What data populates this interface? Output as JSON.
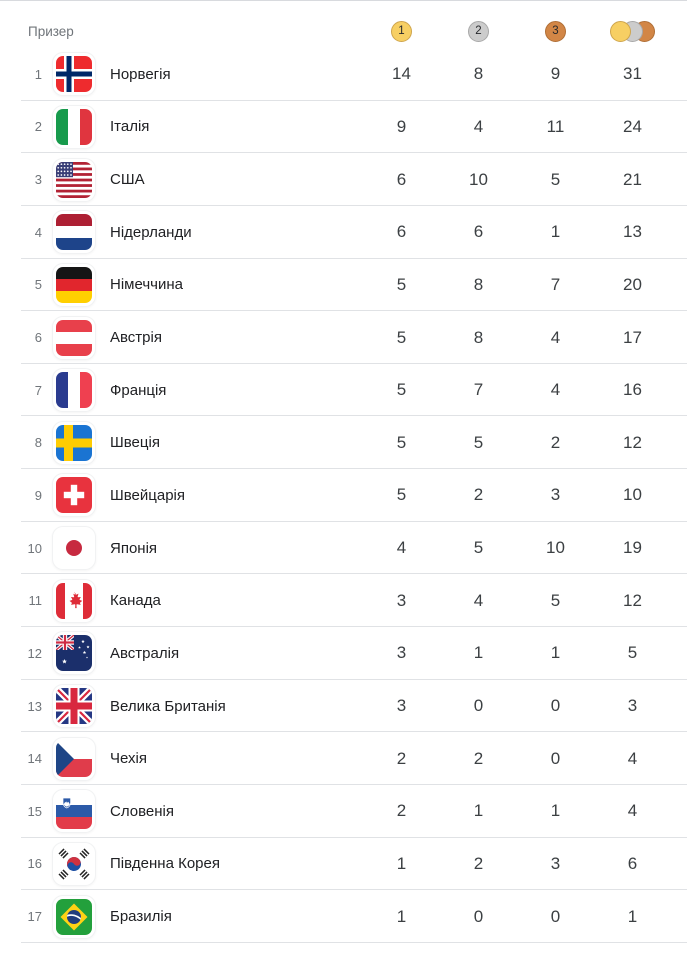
{
  "header": {
    "label": "Призер",
    "medals": {
      "gold": {
        "label": "1",
        "fill": "#f7cf63",
        "border": "#cfa54d"
      },
      "silver": {
        "label": "2",
        "fill": "#cccccc",
        "border": "#a8a8a8"
      },
      "bronze": {
        "label": "3",
        "fill": "#d28646",
        "border": "#b06f36"
      }
    },
    "total_icon": "gold-silver-bronze-overlapping-circles"
  },
  "colors": {
    "top_border": "#d8dade",
    "row_divider": "#e0e2e5",
    "rank_text": "#70757a",
    "country_text": "#202124",
    "count_text": "#3c4043",
    "header_text": "#70757a"
  },
  "table": {
    "columns": [
      "rank",
      "country",
      "gold",
      "silver",
      "bronze",
      "total"
    ],
    "rows": [
      {
        "rank": "1",
        "country": "Норвегія",
        "flag": "norway",
        "gold": "14",
        "silver": "8",
        "bronze": "9",
        "total": "31"
      },
      {
        "rank": "2",
        "country": "Італія",
        "flag": "italy",
        "gold": "9",
        "silver": "4",
        "bronze": "11",
        "total": "24"
      },
      {
        "rank": "3",
        "country": "США",
        "flag": "usa",
        "gold": "6",
        "silver": "10",
        "bronze": "5",
        "total": "21"
      },
      {
        "rank": "4",
        "country": "Нідерланди",
        "flag": "netherlands",
        "gold": "6",
        "silver": "6",
        "bronze": "1",
        "total": "13"
      },
      {
        "rank": "5",
        "country": "Німеччина",
        "flag": "germany",
        "gold": "5",
        "silver": "8",
        "bronze": "7",
        "total": "20"
      },
      {
        "rank": "6",
        "country": "Австрія",
        "flag": "austria",
        "gold": "5",
        "silver": "8",
        "bronze": "4",
        "total": "17"
      },
      {
        "rank": "7",
        "country": "Франція",
        "flag": "france",
        "gold": "5",
        "silver": "7",
        "bronze": "4",
        "total": "16"
      },
      {
        "rank": "8",
        "country": "Швеція",
        "flag": "sweden",
        "gold": "5",
        "silver": "5",
        "bronze": "2",
        "total": "12"
      },
      {
        "rank": "9",
        "country": "Швейцарія",
        "flag": "switzerland",
        "gold": "5",
        "silver": "2",
        "bronze": "3",
        "total": "10"
      },
      {
        "rank": "10",
        "country": "Японія",
        "flag": "japan",
        "gold": "4",
        "silver": "5",
        "bronze": "10",
        "total": "19"
      },
      {
        "rank": "11",
        "country": "Канада",
        "flag": "canada",
        "gold": "3",
        "silver": "4",
        "bronze": "5",
        "total": "12"
      },
      {
        "rank": "12",
        "country": "Австралія",
        "flag": "australia",
        "gold": "3",
        "silver": "1",
        "bronze": "1",
        "total": "5"
      },
      {
        "rank": "13",
        "country": "Велика Британія",
        "flag": "great-britain",
        "gold": "3",
        "silver": "0",
        "bronze": "0",
        "total": "3"
      },
      {
        "rank": "14",
        "country": "Чехія",
        "flag": "czechia",
        "gold": "2",
        "silver": "2",
        "bronze": "0",
        "total": "4"
      },
      {
        "rank": "15",
        "country": "Словенія",
        "flag": "slovenia",
        "gold": "2",
        "silver": "1",
        "bronze": "1",
        "total": "4"
      },
      {
        "rank": "16",
        "country": "Південна Корея",
        "flag": "south-korea",
        "gold": "1",
        "silver": "2",
        "bronze": "3",
        "total": "6"
      },
      {
        "rank": "17",
        "country": "Бразилія",
        "flag": "brazil",
        "gold": "1",
        "silver": "0",
        "bronze": "0",
        "total": "1"
      }
    ]
  }
}
